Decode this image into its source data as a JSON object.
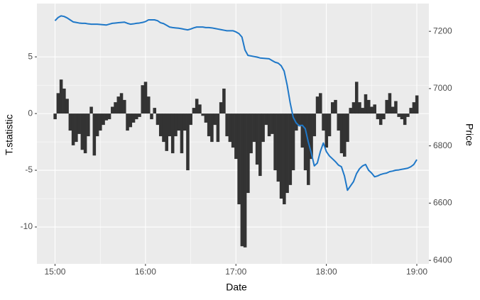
{
  "chart_data": {
    "type": "bar-line",
    "x_label": "Date",
    "y_label": "T.statistic",
    "y2_label": "Price",
    "x": [
      "15:00",
      "15:02",
      "15:04",
      "15:06",
      "15:08",
      "15:10",
      "15:12",
      "15:14",
      "15:16",
      "15:18",
      "15:20",
      "15:22",
      "15:24",
      "15:26",
      "15:28",
      "15:30",
      "15:32",
      "15:34",
      "15:36",
      "15:38",
      "15:40",
      "15:42",
      "15:44",
      "15:46",
      "15:48",
      "15:50",
      "15:52",
      "15:54",
      "15:56",
      "15:58",
      "16:00",
      "16:02",
      "16:04",
      "16:06",
      "16:08",
      "16:10",
      "16:12",
      "16:14",
      "16:16",
      "16:18",
      "16:20",
      "16:22",
      "16:24",
      "16:26",
      "16:28",
      "16:30",
      "16:32",
      "16:34",
      "16:36",
      "16:38",
      "16:40",
      "16:42",
      "16:44",
      "16:46",
      "16:48",
      "16:50",
      "16:52",
      "16:54",
      "16:56",
      "16:58",
      "17:00",
      "17:02",
      "17:04",
      "17:06",
      "17:08",
      "17:10",
      "17:12",
      "17:14",
      "17:16",
      "17:18",
      "17:20",
      "17:22",
      "17:24",
      "17:26",
      "17:28",
      "17:30",
      "17:32",
      "17:34",
      "17:36",
      "17:38",
      "17:40",
      "17:42",
      "17:44",
      "17:46",
      "17:48",
      "17:50",
      "17:52",
      "17:54",
      "17:56",
      "17:58",
      "18:00",
      "18:02",
      "18:04",
      "18:06",
      "18:08",
      "18:10",
      "18:12",
      "18:14",
      "18:16",
      "18:18",
      "18:20",
      "18:22",
      "18:24",
      "18:26",
      "18:28",
      "18:30",
      "18:32",
      "18:34",
      "18:36",
      "18:38",
      "18:40",
      "18:42",
      "18:44",
      "18:46",
      "18:48",
      "18:50",
      "18:52",
      "18:54",
      "18:56",
      "18:58",
      "19:00"
    ],
    "series": [
      {
        "name": "T.statistic",
        "kind": "bar",
        "color": "#333333",
        "values": [
          -0.5,
          1.8,
          3.0,
          2.2,
          1.3,
          -1.5,
          -2.8,
          -2.5,
          -1.8,
          -3.2,
          -3.5,
          -2.0,
          0.6,
          -3.7,
          -2.0,
          -1.5,
          -1.0,
          -0.6,
          -0.5,
          0.6,
          1.0,
          1.5,
          1.8,
          1.2,
          -1.5,
          -1.2,
          -0.8,
          -0.5,
          -0.3,
          2.5,
          2.8,
          1.5,
          -0.5,
          0.5,
          -1.0,
          -2.0,
          -2.5,
          -3.3,
          -2.0,
          -3.5,
          -2.0,
          -1.5,
          -3.5,
          -1.5,
          -5.0,
          -1.0,
          0.5,
          1.3,
          0.8,
          -0.2,
          -0.8,
          -2.0,
          -2.5,
          -1.0,
          -2.5,
          1.0,
          2.2,
          -2.0,
          -2.5,
          -3.0,
          -4.0,
          -8.0,
          -11.7,
          -11.8,
          -7.0,
          -3.5,
          -2.5,
          -4.5,
          -5.5,
          -2.5,
          -1.0,
          -2.0,
          -1.8,
          -5.0,
          -6.0,
          -7.5,
          -8.0,
          -7.0,
          -6.3,
          -5.0,
          -1.5,
          -1.0,
          -3.0,
          -5.0,
          -6.3,
          -4.0,
          -2.0,
          1.5,
          1.8,
          -1.5,
          -3.0,
          -2.0,
          1.0,
          1.2,
          -1.5,
          -3.5,
          -3.8,
          -2.5,
          0.5,
          1.0,
          2.8,
          1.0,
          0.5,
          1.7,
          1.2,
          0.6,
          0.8,
          -0.5,
          -1.0,
          -0.5,
          1.2,
          1.8,
          0.6,
          1.1,
          -0.3,
          -0.5,
          -1.0,
          -0.3,
          0.5,
          1.0,
          1.6
        ]
      },
      {
        "name": "Price",
        "kind": "line",
        "axis": "y2",
        "color": "#1f78c8",
        "values": [
          7237,
          7248,
          7254,
          7252,
          7247,
          7240,
          7233,
          7231,
          7229,
          7228,
          7228,
          7226,
          7225,
          7225,
          7225,
          7224,
          7223,
          7222,
          7225,
          7228,
          7229,
          7230,
          7231,
          7232,
          7228,
          7225,
          7226,
          7228,
          7229,
          7231,
          7234,
          7240,
          7240,
          7240,
          7237,
          7230,
          7227,
          7221,
          7215,
          7213,
          7212,
          7211,
          7209,
          7207,
          7205,
          7208,
          7212,
          7215,
          7215,
          7215,
          7213,
          7213,
          7212,
          7210,
          7208,
          7206,
          7204,
          7202,
          7202,
          7202,
          7198,
          7192,
          7180,
          7135,
          7116,
          7114,
          7112,
          7110,
          7107,
          7106,
          7105,
          7104,
          7098,
          7092,
          7089,
          7080,
          7061,
          7012,
          6950,
          6900,
          6880,
          6870,
          6872,
          6860,
          6814,
          6775,
          6730,
          6740,
          6780,
          6810,
          6780,
          6765,
          6755,
          6745,
          6733,
          6727,
          6695,
          6645,
          6660,
          6675,
          6703,
          6720,
          6730,
          6735,
          6715,
          6705,
          6692,
          6695,
          6700,
          6703,
          6705,
          6710,
          6712,
          6715,
          6716,
          6718,
          6720,
          6722,
          6727,
          6735,
          6752
        ]
      }
    ],
    "xlim": [
      "14:48",
      "19:08"
    ],
    "xticks": [
      "15:00",
      "16:00",
      "17:00",
      "18:00",
      "19:00"
    ],
    "ylim": [
      -13.25,
      9.7
    ],
    "yticks": [
      -10,
      -5,
      0,
      5
    ],
    "y2lim": [
      6388,
      7297
    ],
    "y2ticks": [
      6400,
      6600,
      6800,
      7000,
      7200
    ],
    "grid": true
  }
}
